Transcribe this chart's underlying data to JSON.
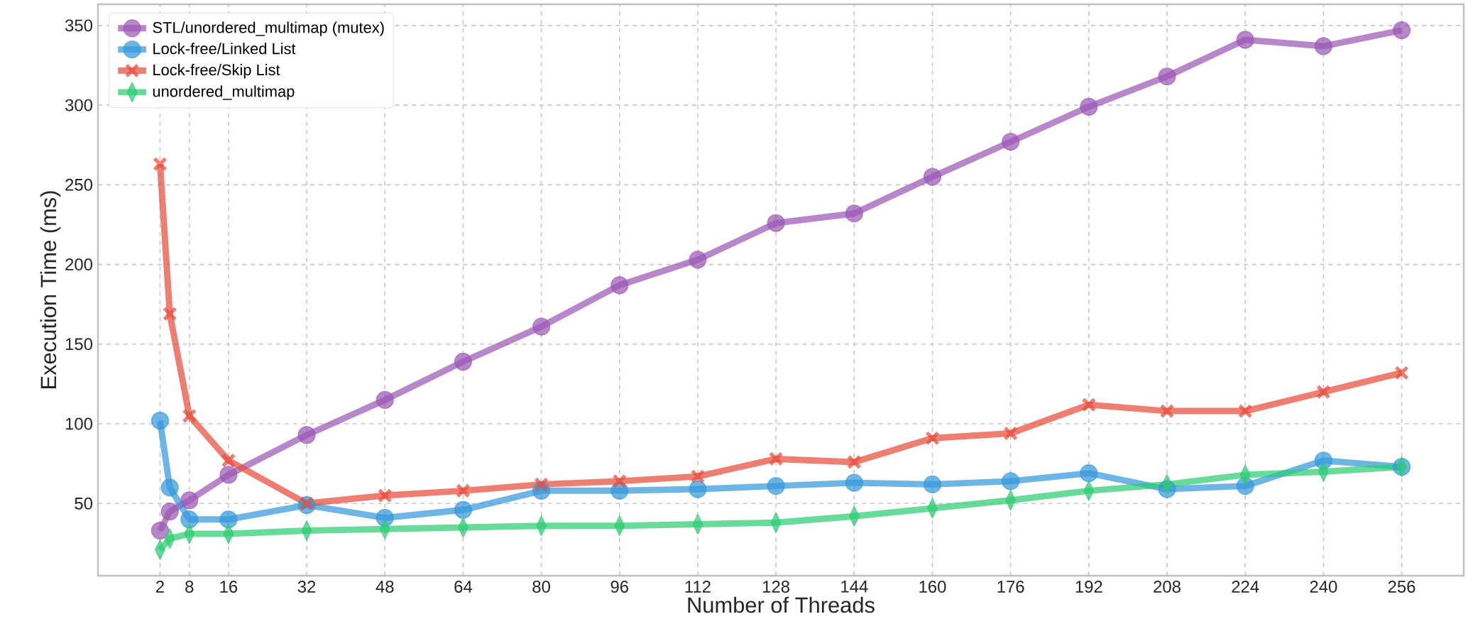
{
  "chart_data": {
    "type": "line",
    "xlabel": "Number of Threads",
    "ylabel": "Execution Time (ms)",
    "x": [
      2,
      4,
      8,
      16,
      32,
      48,
      64,
      80,
      96,
      112,
      128,
      144,
      160,
      176,
      192,
      208,
      224,
      240,
      256
    ],
    "series": [
      {
        "name": "STL/unordered_multimap (mutex)",
        "color": "#9b59b6",
        "marker": "circle",
        "values": [
          33,
          45,
          52,
          68,
          93,
          115,
          139,
          161,
          187,
          203,
          226,
          232,
          255,
          277,
          299,
          318,
          341,
          337,
          347
        ]
      },
      {
        "name": "Lock-free/Linked List",
        "color": "#3498db",
        "marker": "circle",
        "values": [
          102,
          60,
          40,
          40,
          49,
          41,
          46,
          58,
          58,
          59,
          61,
          63,
          62,
          64,
          69,
          59,
          61,
          77,
          73
        ]
      },
      {
        "name": "Lock-free/Skip List",
        "color": "#e74c3c",
        "marker": "cross",
        "values": [
          263,
          169,
          105,
          77,
          50,
          55,
          58,
          62,
          64,
          67,
          78,
          76,
          91,
          94,
          112,
          108,
          108,
          120,
          132
        ]
      },
      {
        "name": "unordered_multimap",
        "color": "#2ecc71",
        "marker": "diamond",
        "values": [
          21,
          28,
          31,
          31,
          33,
          34,
          35,
          36,
          36,
          37,
          38,
          42,
          47,
          52,
          58,
          62,
          68,
          70,
          73
        ]
      }
    ],
    "xlim": [
      -10.7,
      268.7
    ],
    "ylim": [
      4.7,
      363.3
    ],
    "xticks": [
      2,
      8,
      16,
      32,
      48,
      64,
      80,
      96,
      112,
      128,
      144,
      160,
      176,
      192,
      208,
      224,
      240,
      256
    ],
    "yticks": [
      50,
      100,
      150,
      200,
      250,
      300,
      350
    ],
    "grid": true,
    "legend": "top left",
    "line_style": "solid"
  }
}
